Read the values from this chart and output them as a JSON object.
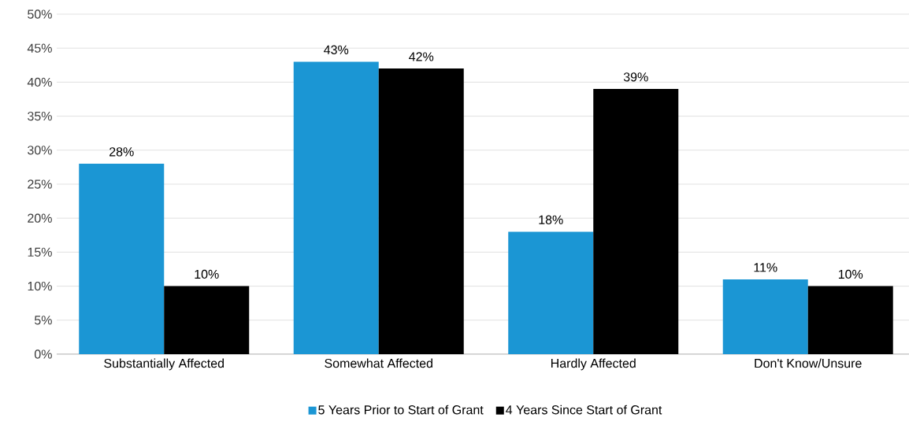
{
  "chart_data": {
    "type": "bar",
    "categories": [
      "Substantially Affected",
      "Somewhat Affected",
      "Hardly Affected",
      "Don't Know/Unsure"
    ],
    "series": [
      {
        "name": "5 Years Prior to Start of Grant",
        "color": "#1b96d4",
        "values": [
          28,
          43,
          18,
          11
        ],
        "value_labels": [
          "28%",
          "43%",
          "18%",
          "11%"
        ]
      },
      {
        "name": "4 Years Since Start of Grant",
        "color": "#000000",
        "values": [
          10,
          42,
          39,
          10
        ],
        "value_labels": [
          "10%",
          "42%",
          "39%",
          "10%"
        ]
      }
    ],
    "ylim": [
      0,
      50
    ],
    "yticks": [
      {
        "value": 0,
        "label": "0%"
      },
      {
        "value": 5,
        "label": "5%"
      },
      {
        "value": 10,
        "label": "10%"
      },
      {
        "value": 15,
        "label": "15%"
      },
      {
        "value": 20,
        "label": "20%"
      },
      {
        "value": 25,
        "label": "25%"
      },
      {
        "value": 30,
        "label": "30%"
      },
      {
        "value": 35,
        "label": "35%"
      },
      {
        "value": 40,
        "label": "40%"
      },
      {
        "value": 45,
        "label": "45%"
      },
      {
        "value": 50,
        "label": "50%"
      }
    ],
    "grid": "y",
    "legend": "bottom"
  }
}
